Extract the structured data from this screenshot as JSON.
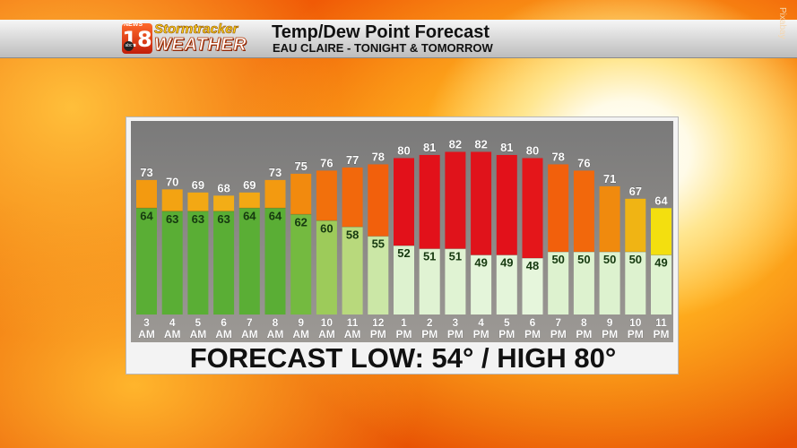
{
  "header": {
    "logo": {
      "news": "NEWS",
      "number": "18",
      "network": "abc",
      "brand_top": "Stormtracker",
      "brand_bottom": "WEATHER"
    },
    "title": "Temp/Dew Point Forecast",
    "subtitle": "EAU CLAIRE - TONIGHT & TOMORROW"
  },
  "credit": "Pixabay",
  "forecast_text": "FORECAST LOW: 54° / HIGH 80°",
  "colors": {
    "dew_green": "#58b038",
    "dew_light": "#d8f1cc",
    "temp_orange": "#f26a0c",
    "temp_red": "#e2111a",
    "temp_yellow": "#f3df0f"
  },
  "chart_data": {
    "type": "bar",
    "categories": [
      "3 AM",
      "4 AM",
      "5 AM",
      "6 AM",
      "7 AM",
      "8 AM",
      "9 AM",
      "10 AM",
      "11 AM",
      "12 PM",
      "1 PM",
      "2 PM",
      "3 PM",
      "4 PM",
      "5 PM",
      "6 PM",
      "7 PM",
      "8 PM",
      "9 PM",
      "10 PM",
      "11 PM"
    ],
    "hours": [
      "3",
      "4",
      "5",
      "6",
      "7",
      "8",
      "9",
      "10",
      "11",
      "12",
      "1",
      "2",
      "3",
      "4",
      "5",
      "6",
      "7",
      "8",
      "9",
      "10",
      "11"
    ],
    "periods": [
      "AM",
      "AM",
      "AM",
      "AM",
      "AM",
      "AM",
      "AM",
      "AM",
      "AM",
      "PM",
      "PM",
      "PM",
      "PM",
      "PM",
      "PM",
      "PM",
      "PM",
      "PM",
      "PM",
      "PM",
      "PM"
    ],
    "series": [
      {
        "name": "Temp",
        "values": [
          73,
          70,
          69,
          68,
          69,
          73,
          75,
          76,
          77,
          78,
          80,
          81,
          82,
          82,
          81,
          80,
          78,
          76,
          71,
          67,
          64
        ]
      },
      {
        "name": "Dew Point",
        "values": [
          64,
          63,
          63,
          63,
          64,
          64,
          62,
          60,
          58,
          55,
          52,
          51,
          51,
          49,
          49,
          48,
          50,
          50,
          50,
          50,
          49
        ]
      }
    ],
    "bar_colors_temp": [
      "#f39a10",
      "#f3a312",
      "#f3a814",
      "#f3ad16",
      "#f3a814",
      "#f39a10",
      "#f28a0e",
      "#f2700c",
      "#f2680c",
      "#f2600c",
      "#e2111a",
      "#e2111a",
      "#e0131b",
      "#e0131b",
      "#e2111a",
      "#e4161a",
      "#f2600c",
      "#f2680c",
      "#f08a0e",
      "#f0b414",
      "#f3df0f"
    ],
    "bar_colors_dew": [
      "#5aae35",
      "#5aae35",
      "#5aae35",
      "#5aae35",
      "#5aae35",
      "#5aae35",
      "#74ba40",
      "#9dcb5a",
      "#b8d97c",
      "#cbe7a6",
      "#ddf2cf",
      "#e0f3d3",
      "#e0f3d3",
      "#e4f5da",
      "#e4f5da",
      "#e6f6dc",
      "#ddf2cf",
      "#ddf2cf",
      "#ddf2cf",
      "#ddf2cf",
      "#dff3d0"
    ],
    "ylim": [
      30,
      85
    ]
  }
}
